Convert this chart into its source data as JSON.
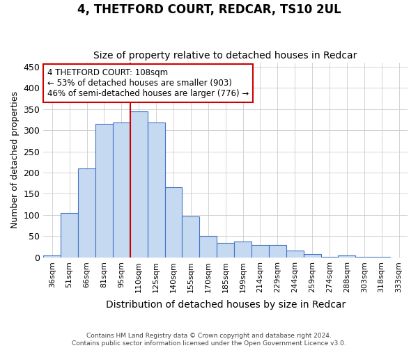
{
  "title": "4, THETFORD COURT, REDCAR, TS10 2UL",
  "subtitle": "Size of property relative to detached houses in Redcar",
  "xlabel": "Distribution of detached houses by size in Redcar",
  "ylabel": "Number of detached properties",
  "categories": [
    "36sqm",
    "51sqm",
    "66sqm",
    "81sqm",
    "95sqm",
    "110sqm",
    "125sqm",
    "140sqm",
    "155sqm",
    "170sqm",
    "185sqm",
    "199sqm",
    "214sqm",
    "229sqm",
    "244sqm",
    "259sqm",
    "274sqm",
    "288sqm",
    "303sqm",
    "318sqm",
    "333sqm"
  ],
  "values": [
    5,
    105,
    210,
    315,
    318,
    345,
    318,
    165,
    97,
    50,
    35,
    37,
    30,
    30,
    16,
    8,
    1,
    5,
    1,
    1,
    0
  ],
  "bar_color": "#c5d9f1",
  "bar_edge_color": "#4472c4",
  "vline_x_index": 5,
  "vline_color": "#cc0000",
  "annotation_text": "4 THETFORD COURT: 108sqm\n← 53% of detached houses are smaller (903)\n46% of semi-detached houses are larger (776) →",
  "annotation_box_color": "#ffffff",
  "annotation_box_edge": "#cc0000",
  "footer_line1": "Contains HM Land Registry data © Crown copyright and database right 2024.",
  "footer_line2": "Contains public sector information licensed under the Open Government Licence v3.0.",
  "bg_color": "#ffffff",
  "grid_color": "#cccccc",
  "ylim": [
    0,
    460
  ],
  "yticks": [
    0,
    50,
    100,
    150,
    200,
    250,
    300,
    350,
    400,
    450
  ],
  "title_fontsize": 12,
  "subtitle_fontsize": 10,
  "tick_fontsize": 8,
  "ylabel_fontsize": 9,
  "xlabel_fontsize": 10
}
